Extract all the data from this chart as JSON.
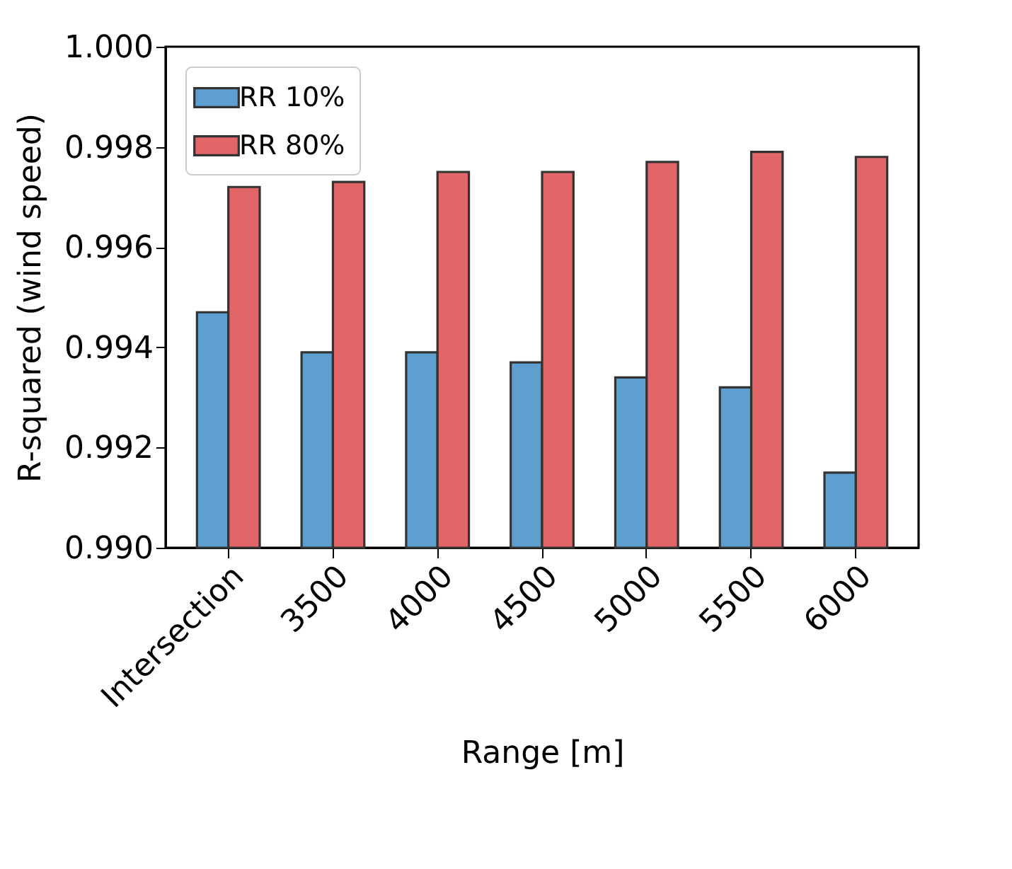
{
  "chart_data": {
    "type": "bar",
    "xlabel": "Range [m]",
    "ylabel": "R-squared (wind speed)",
    "categories": [
      "Intersection",
      "3500",
      "4000",
      "4500",
      "5000",
      "5500",
      "6000"
    ],
    "series": [
      {
        "name": "RR 10%",
        "color": "#5f9fcf",
        "values": [
          0.9947,
          0.9939,
          0.9939,
          0.9937,
          0.9934,
          0.9932,
          0.9915
        ]
      },
      {
        "name": "RR 80%",
        "color": "#e26668",
        "values": [
          0.9972,
          0.9973,
          0.9975,
          0.9975,
          0.9977,
          0.9979,
          0.9978
        ]
      }
    ],
    "ylim": [
      0.99,
      1.0
    ],
    "yticks": [
      {
        "value": 0.99,
        "label": "0.990"
      },
      {
        "value": 0.992,
        "label": "0.992"
      },
      {
        "value": 0.994,
        "label": "0.994"
      },
      {
        "value": 0.996,
        "label": "0.996"
      },
      {
        "value": 0.998,
        "label": "0.998"
      },
      {
        "value": 1.0,
        "label": "1.000"
      }
    ],
    "legend": "top left"
  }
}
